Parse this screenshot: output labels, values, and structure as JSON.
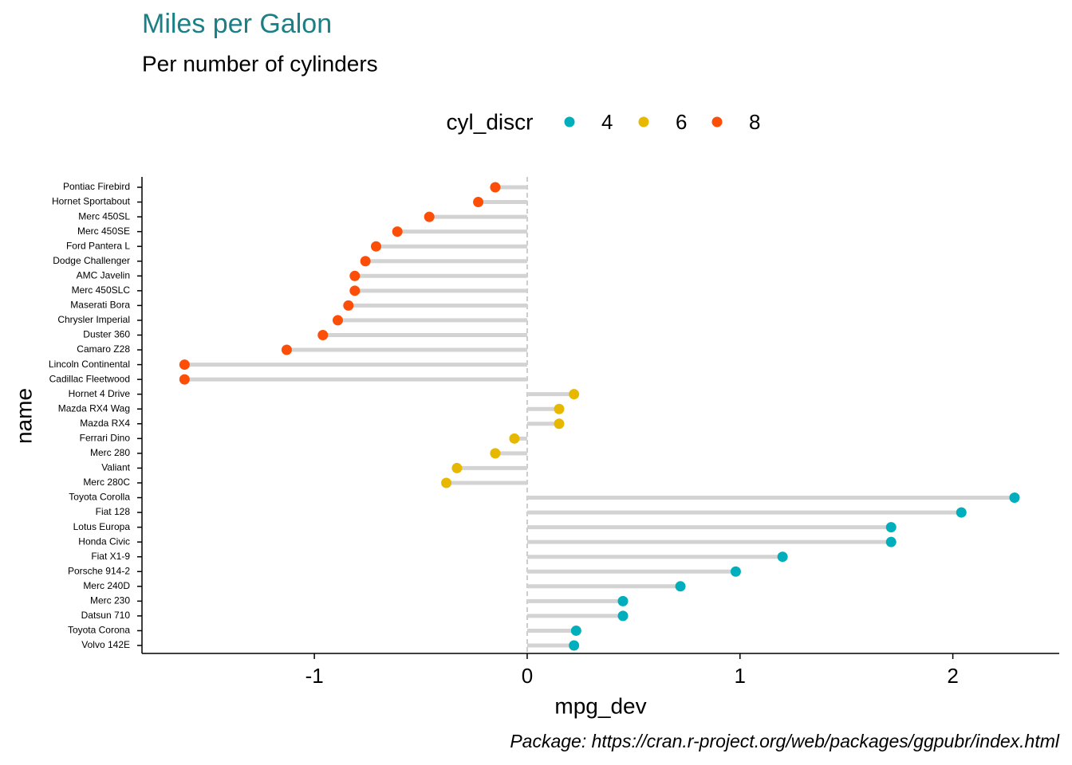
{
  "chart_data": {
    "type": "lollipop",
    "orientation": "horizontal",
    "title": "Miles per Galon",
    "subtitle": "Per number of cylinders",
    "x_label": "mpg_dev",
    "y_label": "name",
    "legend_title": "cyl_discr",
    "caption": "Package: https://cran.r-project.org/web/packages/ggpubr/index.html",
    "legend_position": "top",
    "categories": [
      "Pontiac Firebird",
      "Hornet Sportabout",
      "Merc 450SL",
      "Merc 450SE",
      "Ford Pantera L",
      "Dodge Challenger",
      "AMC Javelin",
      "Merc 450SLC",
      "Maserati Bora",
      "Chrysler Imperial",
      "Duster 360",
      "Camaro Z28",
      "Lincoln Continental",
      "Cadillac Fleetwood",
      "Hornet 4 Drive",
      "Mazda RX4 Wag",
      "Mazda RX4",
      "Ferrari Dino",
      "Merc 280",
      "Valiant",
      "Merc 280C",
      "Toyota Corolla",
      "Fiat 128",
      "Lotus Europa",
      "Honda Civic",
      "Fiat X1-9",
      "Porsche 914-2",
      "Merc 240D",
      "Merc 230",
      "Datsun 710",
      "Toyota Corona",
      "Volvo 142E"
    ],
    "series": [
      {
        "name": "4",
        "color": "#00AFBB",
        "values": [
          null,
          null,
          null,
          null,
          null,
          null,
          null,
          null,
          null,
          null,
          null,
          null,
          null,
          null,
          null,
          null,
          null,
          null,
          null,
          null,
          null,
          2.29,
          2.04,
          1.71,
          1.71,
          1.2,
          0.98,
          0.72,
          0.45,
          0.45,
          0.23,
          0.22
        ]
      },
      {
        "name": "6",
        "color": "#E7B800",
        "values": [
          null,
          null,
          null,
          null,
          null,
          null,
          null,
          null,
          null,
          null,
          null,
          null,
          null,
          null,
          0.22,
          0.15,
          0.15,
          -0.06,
          -0.15,
          -0.33,
          -0.38,
          null,
          null,
          null,
          null,
          null,
          null,
          null,
          null,
          null,
          null,
          null
        ]
      },
      {
        "name": "8",
        "color": "#FC4E07",
        "values": [
          -0.15,
          -0.23,
          -0.46,
          -0.61,
          -0.71,
          -0.76,
          -0.81,
          -0.81,
          -0.84,
          -0.89,
          -0.96,
          -1.13,
          -1.61,
          -1.61,
          null,
          null,
          null,
          null,
          null,
          null,
          null,
          null,
          null,
          null,
          null,
          null,
          null,
          null,
          null,
          null,
          null,
          null
        ]
      }
    ],
    "xlim": [
      -1.81,
      2.5
    ],
    "xticks": [
      -1,
      0,
      1,
      2
    ]
  }
}
